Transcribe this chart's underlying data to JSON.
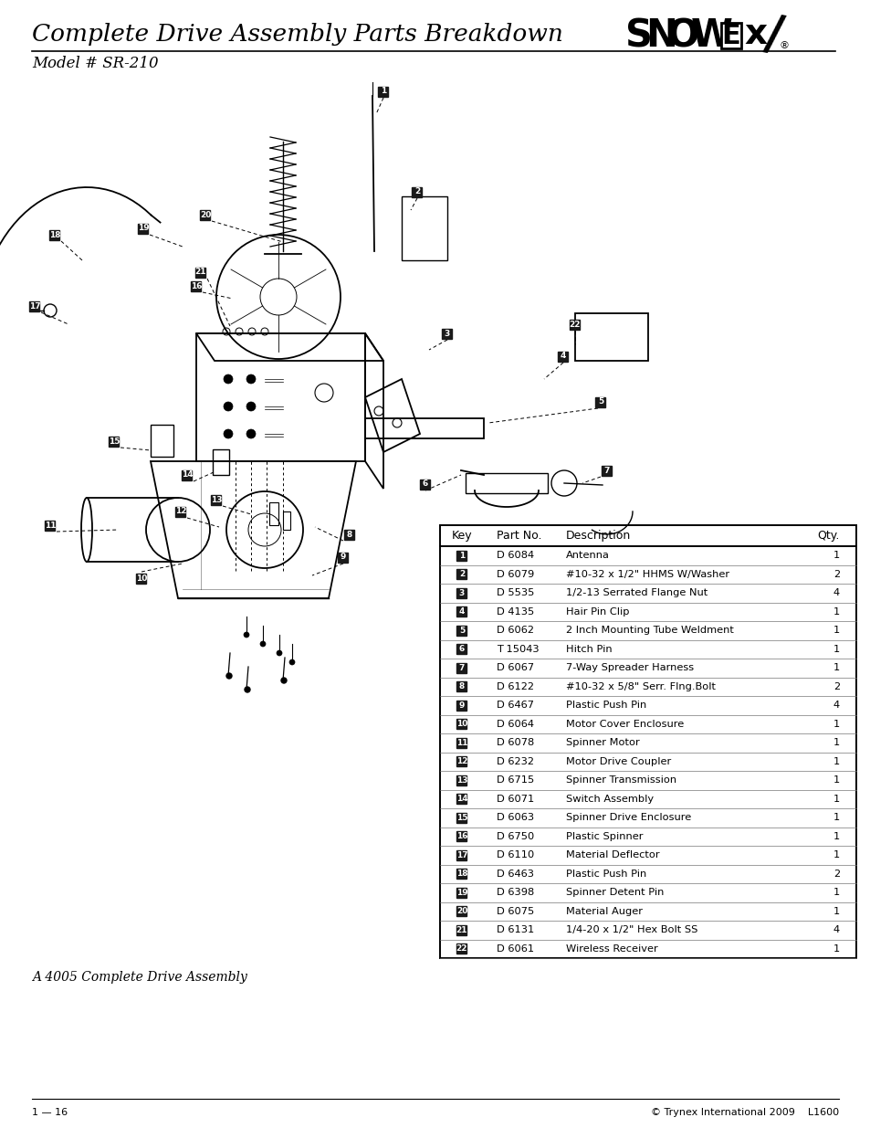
{
  "title": "Complete Drive Assembly Parts Breakdown",
  "model": "Model # SR-210",
  "footer_left": "1 — 16",
  "footer_right": "© Trynex International 2009    L1600",
  "assembly_note": "A 4005 Complete Drive Assembly",
  "table_headers": [
    "Key",
    "Part No.",
    "Description",
    "Qty."
  ],
  "parts": [
    {
      "key": "1",
      "part": "D 6084",
      "desc": "Antenna",
      "qty": "1"
    },
    {
      "key": "2",
      "part": "D 6079",
      "desc": "#10-32 x 1/2\" HHMS W/Washer",
      "qty": "2"
    },
    {
      "key": "3",
      "part": "D 5535",
      "desc": "1/2-13 Serrated Flange Nut",
      "qty": "4"
    },
    {
      "key": "4",
      "part": "D 4135",
      "desc": "Hair Pin Clip",
      "qty": "1"
    },
    {
      "key": "5",
      "part": "D 6062",
      "desc": "2 Inch Mounting Tube Weldment",
      "qty": "1"
    },
    {
      "key": "6",
      "part": "T 15043",
      "desc": "Hitch Pin",
      "qty": "1"
    },
    {
      "key": "7",
      "part": "D 6067",
      "desc": "7-Way Spreader Harness",
      "qty": "1"
    },
    {
      "key": "8",
      "part": "D 6122",
      "desc": "#10-32 x 5/8\" Serr. Flng.Bolt",
      "qty": "2"
    },
    {
      "key": "9",
      "part": "D 6467",
      "desc": "Plastic Push Pin",
      "qty": "4"
    },
    {
      "key": "10",
      "part": "D 6064",
      "desc": "Motor Cover Enclosure",
      "qty": "1"
    },
    {
      "key": "11",
      "part": "D 6078",
      "desc": "Spinner Motor",
      "qty": "1"
    },
    {
      "key": "12",
      "part": "D 6232",
      "desc": "Motor Drive Coupler",
      "qty": "1"
    },
    {
      "key": "13",
      "part": "D 6715",
      "desc": "Spinner Transmission",
      "qty": "1"
    },
    {
      "key": "14",
      "part": "D 6071",
      "desc": "Switch Assembly",
      "qty": "1"
    },
    {
      "key": "15",
      "part": "D 6063",
      "desc": "Spinner Drive Enclosure",
      "qty": "1"
    },
    {
      "key": "16",
      "part": "D 6750",
      "desc": "Plastic Spinner",
      "qty": "1"
    },
    {
      "key": "17",
      "part": "D 6110",
      "desc": "Material Deflector",
      "qty": "1"
    },
    {
      "key": "18",
      "part": "D 6463",
      "desc": "Plastic Push Pin",
      "qty": "2"
    },
    {
      "key": "19",
      "part": "D 6398",
      "desc": "Spinner Detent Pin",
      "qty": "1"
    },
    {
      "key": "20",
      "part": "D 6075",
      "desc": "Material Auger",
      "qty": "1"
    },
    {
      "key": "21",
      "part": "D 6131",
      "desc": "1/4-20 x 1/2\" Hex Bolt SS",
      "qty": "4"
    },
    {
      "key": "22",
      "part": "D 6061",
      "desc": "Wireless Receiver",
      "qty": "1"
    }
  ],
  "bg_color": "#ffffff",
  "text_color": "#000000",
  "key_bg": "#1a1a1a",
  "key_fg": "#ffffff"
}
